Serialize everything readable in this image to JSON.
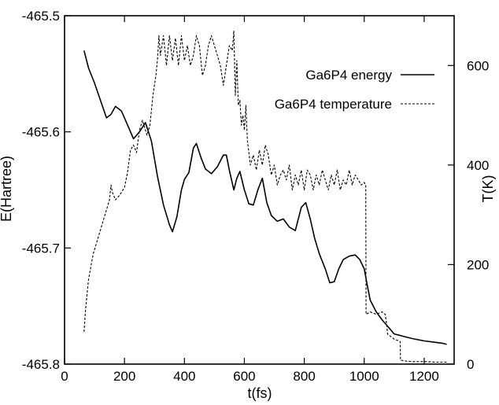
{
  "chart_data": {
    "type": "line",
    "title": "",
    "xlabel": "t(fs)",
    "ylabel": "E(Hartree)",
    "y2label": "T(K)",
    "xlim": [
      0,
      1300
    ],
    "ylim": [
      -465.8,
      -465.5
    ],
    "y2lim": [
      0,
      700
    ],
    "xticks": [
      "0",
      "200",
      "400",
      "600",
      "800",
      "1000",
      "1200"
    ],
    "yticks": [
      "-465.8",
      "-465.7",
      "-465.6",
      "-465.5"
    ],
    "y2ticks": [
      "0",
      "200",
      "400",
      "600"
    ],
    "legend_position": "top-right",
    "grid": false,
    "series": [
      {
        "name": "Ga6P4 energy",
        "axis": "left",
        "style": "solid",
        "x": [
          65,
          80,
          100,
          120,
          140,
          155,
          170,
          190,
          210,
          230,
          250,
          270,
          290,
          310,
          330,
          350,
          360,
          375,
          390,
          400,
          415,
          430,
          440,
          455,
          470,
          490,
          510,
          530,
          540,
          550,
          565,
          575,
          585,
          600,
          615,
          630,
          645,
          660,
          675,
          690,
          710,
          730,
          750,
          770,
          790,
          805,
          820,
          835,
          850,
          870,
          885,
          900,
          915,
          930,
          950,
          970,
          985,
          1000,
          1010,
          1020,
          1040,
          1060,
          1080,
          1100,
          1130,
          1160,
          1200,
          1230,
          1260,
          1275
        ],
        "values": [
          -465.53,
          -465.545,
          -465.558,
          -465.573,
          -465.588,
          -465.585,
          -465.578,
          -465.582,
          -465.594,
          -465.606,
          -465.6,
          -465.592,
          -465.608,
          -465.638,
          -465.663,
          -465.68,
          -465.686,
          -465.673,
          -465.65,
          -465.641,
          -465.635,
          -465.614,
          -465.61,
          -465.622,
          -465.632,
          -465.636,
          -465.63,
          -465.62,
          -465.62,
          -465.633,
          -465.65,
          -465.64,
          -465.634,
          -465.65,
          -465.662,
          -465.663,
          -465.65,
          -465.64,
          -465.661,
          -465.672,
          -465.677,
          -465.675,
          -465.682,
          -465.685,
          -465.665,
          -465.661,
          -465.675,
          -465.692,
          -465.705,
          -465.718,
          -465.73,
          -465.729,
          -465.718,
          -465.71,
          -465.707,
          -465.706,
          -465.71,
          -465.718,
          -465.732,
          -465.745,
          -465.755,
          -465.762,
          -465.768,
          -465.774,
          -465.776,
          -465.778,
          -465.78,
          -465.781,
          -465.782,
          -465.783
        ]
      },
      {
        "name": "Ga6P4 temperature",
        "axis": "right",
        "style": "dashed",
        "x": [
          65,
          70,
          80,
          95,
          110,
          125,
          140,
          150,
          155,
          160,
          170,
          185,
          200,
          210,
          220,
          230,
          240,
          250,
          260,
          275,
          285,
          295,
          305,
          310,
          315,
          320,
          330,
          340,
          350,
          360,
          370,
          380,
          390,
          400,
          410,
          420,
          430,
          440,
          450,
          460,
          470,
          480,
          490,
          500,
          510,
          520,
          530,
          540,
          550,
          560,
          565,
          570,
          575,
          580,
          585,
          590,
          595,
          600,
          605,
          610,
          620,
          630,
          640,
          650,
          660,
          670,
          680,
          690,
          700,
          710,
          720,
          730,
          740,
          750,
          760,
          770,
          780,
          790,
          800,
          810,
          820,
          830,
          840,
          850,
          860,
          870,
          880,
          890,
          900,
          910,
          920,
          930,
          940,
          950,
          960,
          970,
          980,
          990,
          1000,
          1005,
          1006,
          1020,
          1040,
          1060,
          1070,
          1075,
          1078,
          1090,
          1100,
          1110,
          1120,
          1121,
          1140,
          1160,
          1200,
          1240,
          1260,
          1275
        ],
        "values": [
          65,
          110,
          170,
          220,
          250,
          280,
          310,
          330,
          360,
          345,
          330,
          340,
          355,
          385,
          430,
          440,
          425,
          470,
          490,
          460,
          480,
          540,
          580,
          610,
          660,
          620,
          660,
          600,
          660,
          610,
          655,
          600,
          660,
          610,
          640,
          600,
          620,
          660,
          640,
          580,
          600,
          640,
          660,
          640,
          620,
          600,
          560,
          600,
          640,
          630,
          670,
          540,
          610,
          520,
          530,
          480,
          500,
          470,
          520,
          450,
          400,
          420,
          390,
          430,
          400,
          440,
          420,
          380,
          400,
          360,
          380,
          390,
          370,
          400,
          350,
          380,
          360,
          390,
          350,
          390,
          380,
          350,
          380,
          360,
          390,
          370,
          350,
          380,
          360,
          390,
          350,
          370,
          360,
          390,
          360,
          380,
          370,
          360,
          365,
          360,
          100,
          105,
          100,
          105,
          100,
          80,
          60,
          55,
          50,
          48,
          45,
          8,
          6,
          5,
          5,
          4,
          4,
          4
        ]
      }
    ]
  }
}
